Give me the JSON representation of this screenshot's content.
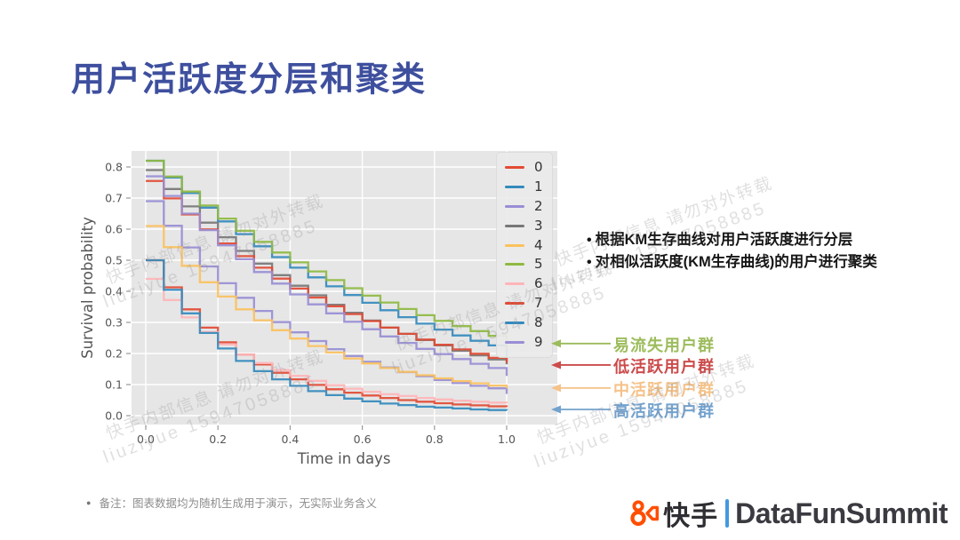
{
  "slide": {
    "title": "用户活跃度分层和聚类",
    "bullets": [
      "根据KM生存曲线对用户活跃度进行分层",
      "对相似活跃度(KM生存曲线)的用户进行聚类"
    ],
    "footnote": "备注：图表数据均为随机生成用于演示，无实际业务含义",
    "watermark": {
      "line1": "快手内部信息 请勿对外转载",
      "line2": "liuziyue 15947058885"
    },
    "logo": {
      "kuaishou_text": "快手",
      "summit_text": "DataFunSummit",
      "icon": "kuaishou-camera-icon",
      "accent_color": "#FF4E00",
      "separator_color": "#4598E0"
    },
    "title_color": "#3E4F9E"
  },
  "annotations": [
    {
      "label": "易流失用户群",
      "color": "#9CBC5C",
      "value": 0.232
    },
    {
      "label": "低活跃用户群",
      "color": "#CC4B4B",
      "value": 0.163
    },
    {
      "label": "中活跃用户群",
      "color": "#F5C289",
      "value": 0.089
    },
    {
      "label": "高活跃用户群",
      "color": "#73A2CE",
      "value": 0.02
    }
  ],
  "chart_data": {
    "type": "line",
    "subtype": "kaplan-meier-step",
    "title": "",
    "xlabel": "Time in days",
    "ylabel": "Survival probability",
    "xlim": [
      -0.04,
      1.14
    ],
    "ylim": [
      -0.03,
      0.85
    ],
    "xticks": [
      0.0,
      0.2,
      0.4,
      0.6,
      0.8,
      1.0
    ],
    "yticks": [
      0.0,
      0.1,
      0.2,
      0.3,
      0.4,
      0.5,
      0.6,
      0.7,
      0.8
    ],
    "x_step": 0.05,
    "grid": true,
    "background": "#E6E6E6",
    "grid_color": "#FFFFFF",
    "tick_color": "#555555",
    "legend_position": "upper right",
    "series": [
      {
        "name": "0",
        "color": "#E24A33",
        "values": [
          0.5,
          0.413,
          0.342,
          0.283,
          0.236,
          0.197,
          0.165,
          0.138,
          0.117,
          0.099,
          0.085,
          0.074,
          0.065,
          0.057,
          0.05,
          0.045,
          0.04,
          0.036,
          0.033,
          0.03,
          0.028
        ]
      },
      {
        "name": "1",
        "color": "#348ABD",
        "values": [
          0.82,
          0.766,
          0.716,
          0.669,
          0.625,
          0.584,
          0.545,
          0.51,
          0.476,
          0.445,
          0.416,
          0.388,
          0.363,
          0.339,
          0.317,
          0.296,
          0.277,
          0.258,
          0.241,
          0.226,
          0.19
        ]
      },
      {
        "name": "2",
        "color": "#988ED5",
        "values": [
          0.69,
          0.611,
          0.541,
          0.48,
          0.426,
          0.379,
          0.337,
          0.301,
          0.268,
          0.24,
          0.214,
          0.192,
          0.173,
          0.155,
          0.14,
          0.127,
          0.115,
          0.105,
          0.096,
          0.088,
          0.07
        ]
      },
      {
        "name": "3",
        "color": "#777777",
        "values": [
          0.79,
          0.729,
          0.673,
          0.621,
          0.574,
          0.53,
          0.489,
          0.452,
          0.418,
          0.387,
          0.357,
          0.331,
          0.306,
          0.283,
          0.263,
          0.243,
          0.226,
          0.209,
          0.194,
          0.181,
          0.165
        ]
      },
      {
        "name": "4",
        "color": "#FBC15E",
        "values": [
          0.61,
          0.542,
          0.482,
          0.429,
          0.383,
          0.342,
          0.307,
          0.275,
          0.248,
          0.224,
          0.203,
          0.184,
          0.168,
          0.153,
          0.141,
          0.13,
          0.12,
          0.111,
          0.104,
          0.097,
          0.088
        ]
      },
      {
        "name": "5",
        "color": "#8EBA42",
        "values": [
          0.82,
          0.769,
          0.721,
          0.676,
          0.634,
          0.595,
          0.559,
          0.525,
          0.493,
          0.464,
          0.436,
          0.41,
          0.386,
          0.364,
          0.343,
          0.323,
          0.305,
          0.288,
          0.272,
          0.257,
          0.215
        ]
      },
      {
        "name": "6",
        "color": "#FFB5B8",
        "values": [
          0.44,
          0.372,
          0.316,
          0.269,
          0.229,
          0.197,
          0.169,
          0.147,
          0.128,
          0.112,
          0.098,
          0.087,
          0.077,
          0.069,
          0.063,
          0.057,
          0.052,
          0.048,
          0.045,
          0.042,
          0.04
        ]
      },
      {
        "name": "7",
        "color": "#E24A33",
        "values": [
          0.755,
          0.699,
          0.647,
          0.599,
          0.554,
          0.513,
          0.476,
          0.441,
          0.409,
          0.38,
          0.352,
          0.327,
          0.304,
          0.283,
          0.263,
          0.245,
          0.228,
          0.213,
          0.199,
          0.186,
          0.17
        ]
      },
      {
        "name": "8",
        "color": "#348ABD",
        "values": [
          0.5,
          0.405,
          0.329,
          0.266,
          0.216,
          0.176,
          0.143,
          0.117,
          0.096,
          0.079,
          0.066,
          0.055,
          0.046,
          0.039,
          0.034,
          0.029,
          0.026,
          0.023,
          0.02,
          0.018,
          0.017
        ]
      },
      {
        "name": "9",
        "color": "#988ED5",
        "values": [
          0.77,
          0.707,
          0.65,
          0.597,
          0.548,
          0.503,
          0.462,
          0.425,
          0.39,
          0.358,
          0.329,
          0.302,
          0.278,
          0.255,
          0.234,
          0.215,
          0.198,
          0.182,
          0.167,
          0.153,
          0.128
        ]
      }
    ]
  }
}
